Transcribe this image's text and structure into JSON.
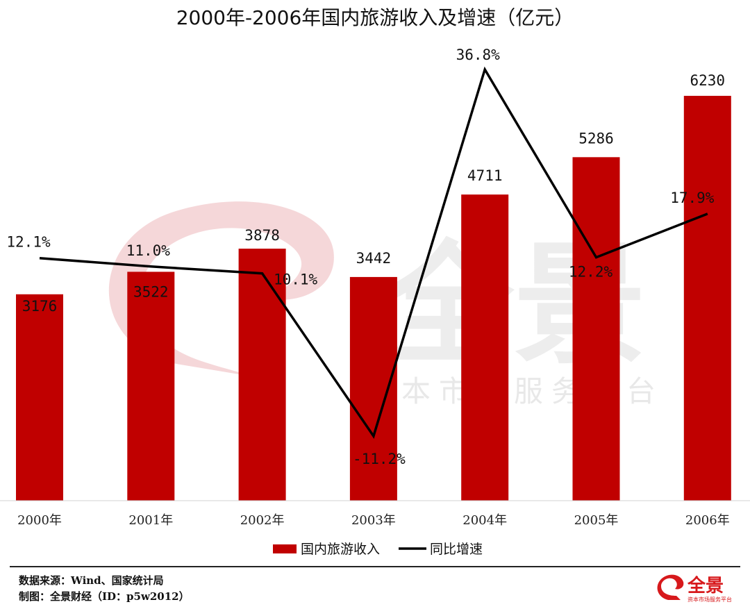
{
  "chart_data": {
    "type": "bar",
    "title": "2000年-2006年国内旅游收入及增速（亿元）",
    "categories": [
      "2000年",
      "2001年",
      "2002年",
      "2003年",
      "2004年",
      "2005年",
      "2006年"
    ],
    "series": [
      {
        "name": "国内旅游收入",
        "type": "bar",
        "values": [
          3176,
          3522,
          3878,
          3442,
          4711,
          5286,
          6230
        ],
        "labels": [
          "3176",
          "3522",
          "3878",
          "3442",
          "4711",
          "5286",
          "6230"
        ],
        "color": "#c00000"
      },
      {
        "name": "同比增速",
        "type": "line",
        "values": [
          12.1,
          11.0,
          10.1,
          -11.2,
          36.8,
          12.2,
          17.9
        ],
        "labels": [
          "12.1%",
          "11.0%",
          "10.1%",
          "-11.2%",
          "36.8%",
          "12.2%",
          "17.9%"
        ],
        "color": "#000000"
      }
    ],
    "legend_position": "bottom",
    "grid": false
  },
  "footer": {
    "source": "数据来源：Wind、国家统计局",
    "credit": "制图：全景财经（ID：p5w2012）"
  },
  "watermark": {
    "brand": "全景",
    "tagline": "资本市场服务平台"
  },
  "logo": {
    "brand": "全景",
    "tagline": "资本市场服务平台",
    "color": "#d7191c"
  }
}
